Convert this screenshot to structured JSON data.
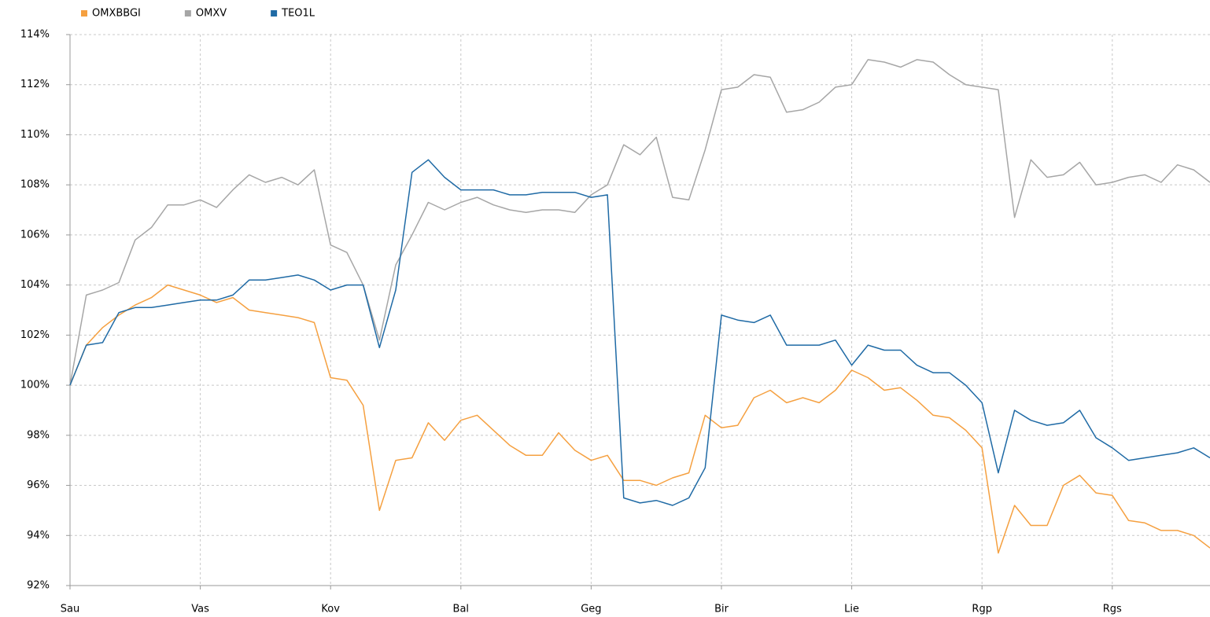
{
  "chart_data": {
    "type": "line",
    "categories": [
      "Sau",
      null,
      null,
      null,
      null,
      null,
      null,
      null,
      "Vas",
      null,
      null,
      null,
      null,
      null,
      null,
      null,
      "Kov",
      null,
      null,
      null,
      null,
      null,
      null,
      null,
      "Bal",
      null,
      null,
      null,
      null,
      null,
      null,
      null,
      "Geg",
      null,
      null,
      null,
      null,
      null,
      null,
      null,
      "Bir",
      null,
      null,
      null,
      null,
      null,
      null,
      null,
      "Lie",
      null,
      null,
      null,
      null,
      null,
      null,
      null,
      "Rgp",
      null,
      null,
      null,
      null,
      null,
      null,
      null,
      "Rgs",
      null,
      null,
      null,
      null,
      null,
      null
    ],
    "series": [
      {
        "name": "OMXBBGI",
        "color": "#f5a040",
        "values": [
          100,
          101.6,
          102.3,
          102.8,
          103.2,
          103.5,
          104.0,
          103.8,
          103.6,
          103.3,
          103.5,
          103.0,
          102.9,
          102.8,
          102.7,
          102.5,
          100.3,
          100.2,
          99.2,
          95.0,
          97.0,
          97.1,
          98.5,
          97.8,
          98.6,
          98.8,
          98.2,
          97.6,
          97.2,
          97.2,
          98.1,
          97.4,
          97.0,
          97.2,
          96.2,
          96.2,
          96.0,
          96.3,
          96.5,
          98.8,
          98.3,
          98.4,
          99.5,
          99.8,
          99.3,
          99.5,
          99.3,
          99.8,
          100.6,
          100.3,
          99.8,
          99.9,
          99.4,
          98.8,
          98.7,
          98.2,
          97.5,
          93.3,
          95.2,
          94.4,
          94.4,
          96.0,
          96.4,
          95.7,
          95.6,
          94.6,
          94.5,
          94.2,
          94.2,
          94.0,
          93.5
        ]
      },
      {
        "name": "OMXV",
        "color": "#a6a6a6",
        "values": [
          100,
          103.6,
          103.8,
          104.1,
          105.8,
          106.3,
          107.2,
          107.2,
          107.4,
          107.1,
          107.8,
          108.4,
          108.1,
          108.3,
          108.0,
          108.6,
          105.6,
          105.3,
          104.0,
          101.8,
          104.8,
          106.0,
          107.3,
          107.0,
          107.3,
          107.5,
          107.2,
          107.0,
          106.9,
          107.0,
          107.0,
          106.9,
          107.6,
          108.0,
          109.6,
          109.2,
          109.9,
          107.5,
          107.4,
          109.4,
          111.8,
          111.9,
          112.4,
          112.3,
          110.9,
          111.0,
          111.3,
          111.9,
          112.0,
          113.0,
          112.9,
          112.7,
          113.0,
          112.9,
          112.4,
          112.0,
          111.9,
          111.8,
          106.7,
          109.0,
          108.3,
          108.4,
          108.9,
          108.0,
          108.1,
          108.3,
          108.4,
          108.1,
          108.8,
          108.6,
          108.1
        ]
      },
      {
        "name": "TEO1L",
        "color": "#1f6aa5",
        "values": [
          100,
          101.6,
          101.7,
          102.9,
          103.1,
          103.1,
          103.2,
          103.3,
          103.4,
          103.4,
          103.6,
          104.2,
          104.2,
          104.3,
          104.4,
          104.2,
          103.8,
          104.0,
          104.0,
          101.5,
          103.8,
          108.5,
          109.0,
          108.3,
          107.8,
          107.8,
          107.8,
          107.6,
          107.6,
          107.7,
          107.7,
          107.7,
          107.5,
          107.6,
          95.5,
          95.3,
          95.4,
          95.2,
          95.5,
          96.7,
          102.8,
          102.6,
          102.5,
          102.8,
          101.6,
          101.6,
          101.6,
          101.8,
          100.8,
          101.6,
          101.4,
          101.4,
          100.8,
          100.5,
          100.5,
          100.0,
          99.3,
          96.5,
          99.0,
          98.6,
          98.4,
          98.5,
          99.0,
          97.9,
          97.5,
          97.0,
          97.1,
          97.2,
          97.3,
          97.5,
          97.1
        ]
      }
    ],
    "ylim": [
      92,
      114
    ],
    "yticks": [
      {
        "value": 92,
        "label": "92%"
      },
      {
        "value": 94,
        "label": "94%"
      },
      {
        "value": 96,
        "label": "96%"
      },
      {
        "value": 98,
        "label": "98%"
      },
      {
        "value": 100,
        "label": "100%"
      },
      {
        "value": 102,
        "label": "102%"
      },
      {
        "value": 104,
        "label": "104%"
      },
      {
        "value": 106,
        "label": "106%"
      },
      {
        "value": 108,
        "label": "108%"
      },
      {
        "value": 110,
        "label": "110%"
      },
      {
        "value": 112,
        "label": "112%"
      },
      {
        "value": 114,
        "label": "114%"
      }
    ],
    "grid": true,
    "legend": "top-left"
  }
}
